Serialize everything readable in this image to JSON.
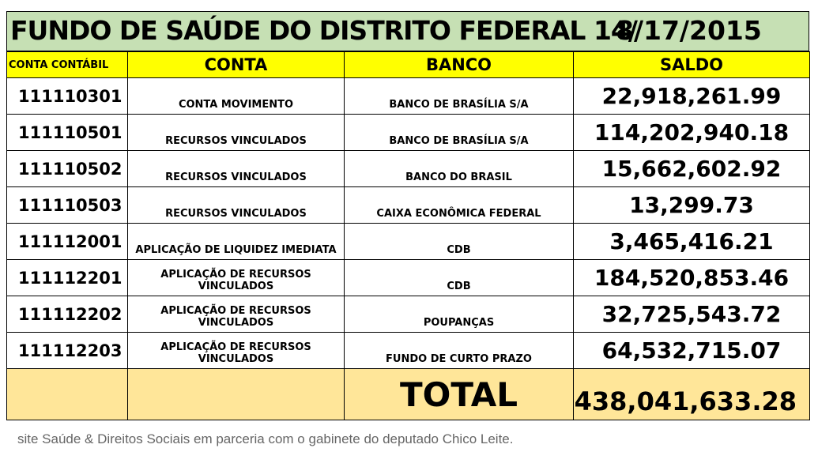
{
  "title": {
    "main": "FUNDO DE SAÚDE DO DISTRITO FEDERAL 14/",
    "date": "8/17/2015"
  },
  "headers": {
    "conta_contabil": "CONTA CONTÁBIL",
    "conta": "CONTA",
    "banco": "BANCO",
    "saldo": "SALDO"
  },
  "rows": [
    {
      "code": "111110301",
      "conta": "CONTA MOVIMENTO",
      "banco": "BANCO DE BRASÍLIA S/A",
      "saldo": "22,918,261.99"
    },
    {
      "code": "111110501",
      "conta": "RECURSOS VINCULADOS",
      "banco": "BANCO DE BRASÍLIA S/A",
      "saldo": "114,202,940.18"
    },
    {
      "code": "111110502",
      "conta": "RECURSOS VINCULADOS",
      "banco": "BANCO DO BRASIL",
      "saldo": "15,662,602.92"
    },
    {
      "code": "111110503",
      "conta": "RECURSOS VINCULADOS",
      "banco": "CAIXA ECONÔMICA FEDERAL",
      "saldo": "13,299.73"
    },
    {
      "code": "111112001",
      "conta": "APLICAÇÃO DE LIQUIDEZ IMEDIATA",
      "banco": "CDB",
      "saldo": "3,465,416.21"
    },
    {
      "code": "111112201",
      "conta": "APLICAÇÃO DE RECURSOS VINCULADOS",
      "banco": "CDB",
      "saldo": "184,520,853.46"
    },
    {
      "code": "111112202",
      "conta": "APLICAÇÃO DE RECURSOS VINCULADOS",
      "banco": "POUPANÇAS",
      "saldo": "32,725,543.72"
    },
    {
      "code": "111112203",
      "conta": "APLICAÇÃO DE RECURSOS VINCULADOS",
      "banco": "FUNDO DE CURTO PRAZO",
      "saldo": "64,532,715.07"
    }
  ],
  "total": {
    "label": "TOTAL",
    "value": "438,041,633.28"
  },
  "caption": "site Saúde & Direitos Sociais em parceria com o gabinete do deputado Chico Leite.",
  "colors": {
    "title_bg": "#c6e0b4",
    "header_bg": "#ffff00",
    "total_bg": "#ffe699"
  }
}
